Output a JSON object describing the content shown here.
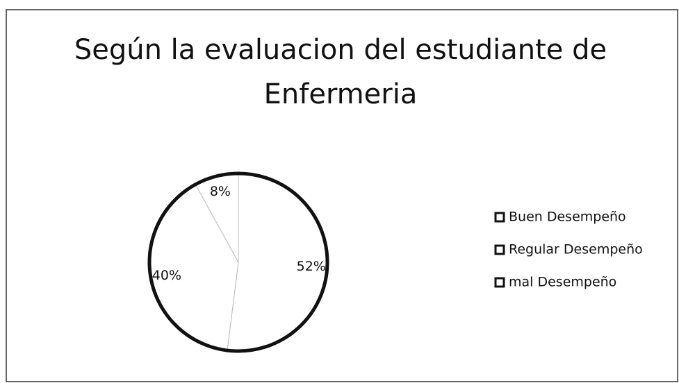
{
  "chart_data": {
    "type": "pie",
    "title": "Según la evaluacion del estudiante de Enfermeria",
    "categories": [
      "Buen Desempeño",
      "Regular Desempeño",
      "mal Desempeño"
    ],
    "values": [
      52,
      40,
      8
    ],
    "value_labels": [
      "52%",
      "40%",
      "8%"
    ],
    "colors": [
      "#ffffff",
      "#ffffff",
      "#ffffff"
    ],
    "legend": "right"
  }
}
